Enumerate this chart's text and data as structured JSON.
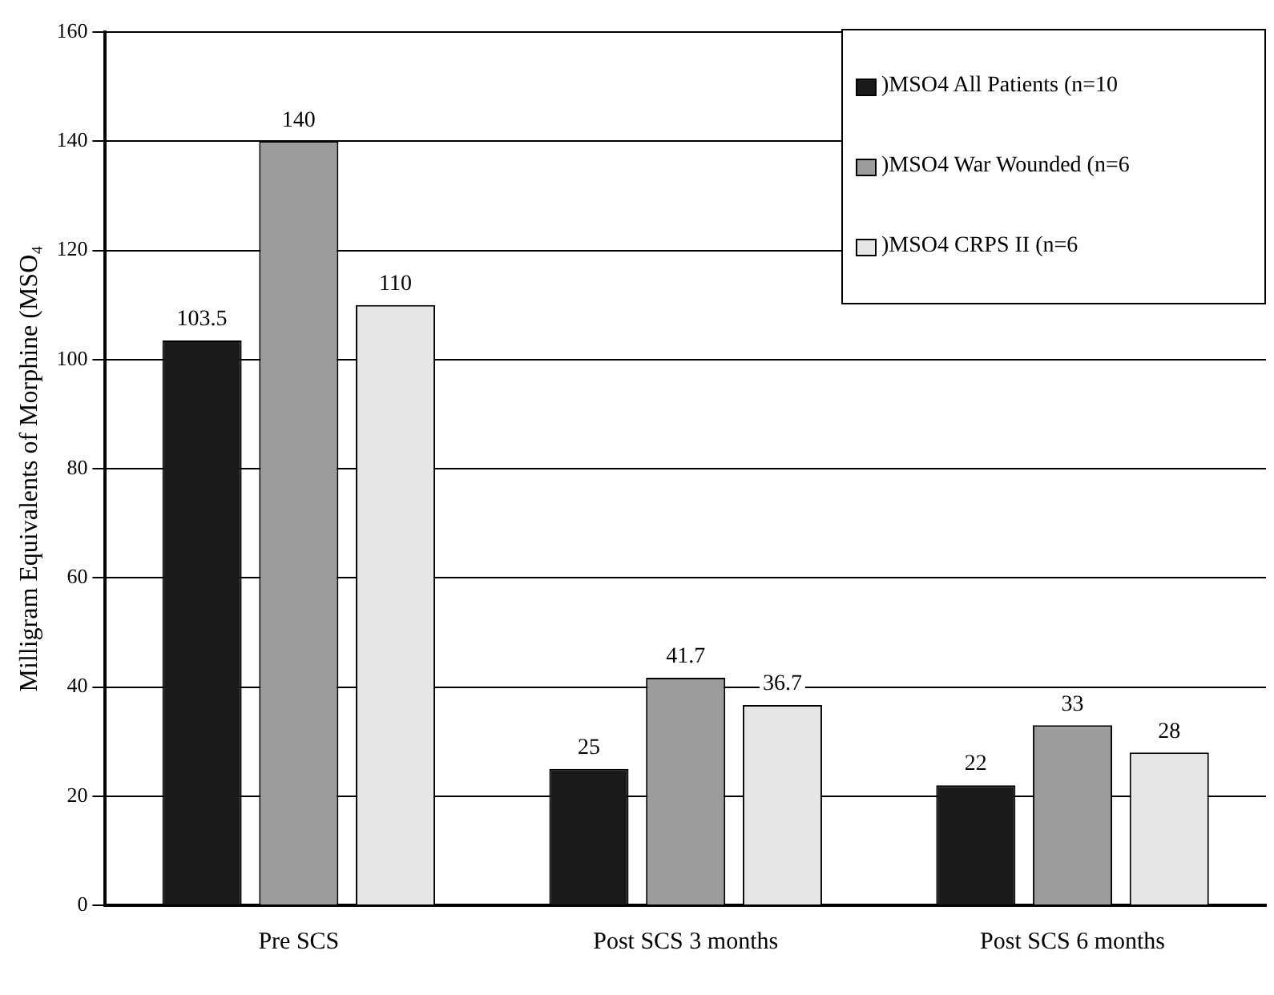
{
  "chart_data": {
    "type": "bar",
    "ylabel": "Milligram Equivalents of Morphine (MSO₄",
    "categories": [
      "Pre SCS",
      "Post SCS 3 months",
      "Post SCS 6 months"
    ],
    "series": [
      {
        "name": ")MSO4 All Patients (n=10",
        "color": "#1a1a1a",
        "values": [
          103.5,
          25,
          22
        ]
      },
      {
        "name": ")MSO4 War Wounded (n=6",
        "color": "#9c9c9c",
        "values": [
          140,
          41.7,
          33
        ]
      },
      {
        "name": ")MSO4 CRPS II (n=6",
        "color": "#e6e6e6",
        "values": [
          110,
          36.7,
          28
        ]
      }
    ],
    "ylim": [
      0,
      160
    ],
    "yticks": [
      0,
      20,
      40,
      60,
      80,
      100,
      120,
      140,
      160
    ],
    "grid": "y",
    "legend": "top right",
    "data_labels": true
  }
}
